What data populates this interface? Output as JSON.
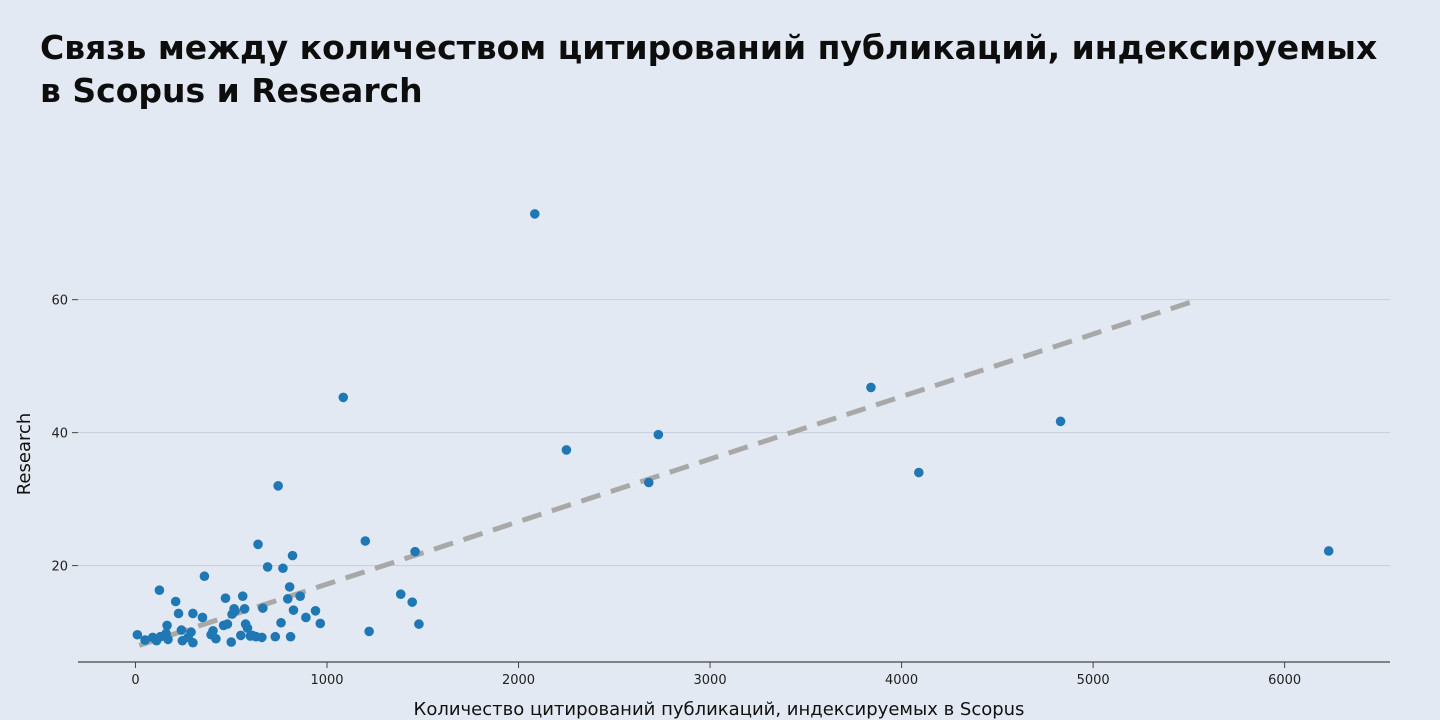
{
  "title": "Связь между количеством цитирований публикаций, индексируемых в Scopus и Research",
  "colors": {
    "background": "#e3e9f2",
    "point": "#1f77b4",
    "trend": "#a8a8a8",
    "grid": "#c9ced8",
    "axis": "#444444"
  },
  "chart_data": {
    "type": "scatter",
    "xlabel": "Количество цитирований публикаций, индексируемых в Scopus",
    "ylabel": "Research",
    "xlim": [
      -300,
      6550
    ],
    "ylim": [
      5.5,
      78
    ],
    "x_ticks": [
      0,
      1000,
      2000,
      3000,
      4000,
      5000,
      6000
    ],
    "y_ticks": [
      20,
      40,
      60
    ],
    "grid": "horizontal",
    "trendline": {
      "x": [
        20,
        5550
      ],
      "y": [
        8,
        60
      ],
      "style": "dashed"
    },
    "points": [
      [
        10,
        9.6
      ],
      [
        50,
        8.8
      ],
      [
        90,
        9.2
      ],
      [
        110,
        8.7
      ],
      [
        130,
        9.3
      ],
      [
        125,
        16.3
      ],
      [
        160,
        9.8
      ],
      [
        165,
        11.0
      ],
      [
        170,
        8.9
      ],
      [
        210,
        14.6
      ],
      [
        225,
        12.8
      ],
      [
        240,
        10.3
      ],
      [
        245,
        8.7
      ],
      [
        275,
        9.2
      ],
      [
        290,
        10.0
      ],
      [
        300,
        8.4
      ],
      [
        300,
        12.8
      ],
      [
        350,
        12.2
      ],
      [
        360,
        18.4
      ],
      [
        395,
        9.6
      ],
      [
        405,
        10.2
      ],
      [
        420,
        9.0
      ],
      [
        460,
        11.0
      ],
      [
        470,
        15.1
      ],
      [
        480,
        11.2
      ],
      [
        500,
        8.5
      ],
      [
        505,
        12.7
      ],
      [
        515,
        13.5
      ],
      [
        520,
        13.2
      ],
      [
        550,
        9.5
      ],
      [
        560,
        15.4
      ],
      [
        570,
        13.5
      ],
      [
        575,
        11.2
      ],
      [
        585,
        10.6
      ],
      [
        600,
        9.4
      ],
      [
        610,
        9.5
      ],
      [
        630,
        9.3
      ],
      [
        640,
        23.2
      ],
      [
        660,
        9.2
      ],
      [
        665,
        13.6
      ],
      [
        690,
        19.8
      ],
      [
        730,
        9.3
      ],
      [
        745,
        32.0
      ],
      [
        760,
        11.4
      ],
      [
        770,
        19.6
      ],
      [
        795,
        15.0
      ],
      [
        805,
        16.8
      ],
      [
        810,
        9.3
      ],
      [
        820,
        21.5
      ],
      [
        825,
        13.3
      ],
      [
        860,
        15.4
      ],
      [
        890,
        12.2
      ],
      [
        940,
        13.2
      ],
      [
        965,
        11.3
      ],
      [
        1085,
        45.3
      ],
      [
        1200,
        23.7
      ],
      [
        1220,
        10.1
      ],
      [
        1385,
        15.7
      ],
      [
        1445,
        14.5
      ],
      [
        1460,
        22.1
      ],
      [
        1480,
        11.2
      ],
      [
        2085,
        72.9
      ],
      [
        2250,
        37.4
      ],
      [
        2680,
        32.5
      ],
      [
        2730,
        39.7
      ],
      [
        3840,
        46.8
      ],
      [
        4090,
        34.0
      ],
      [
        4830,
        41.7
      ],
      [
        6230,
        22.2
      ]
    ]
  }
}
